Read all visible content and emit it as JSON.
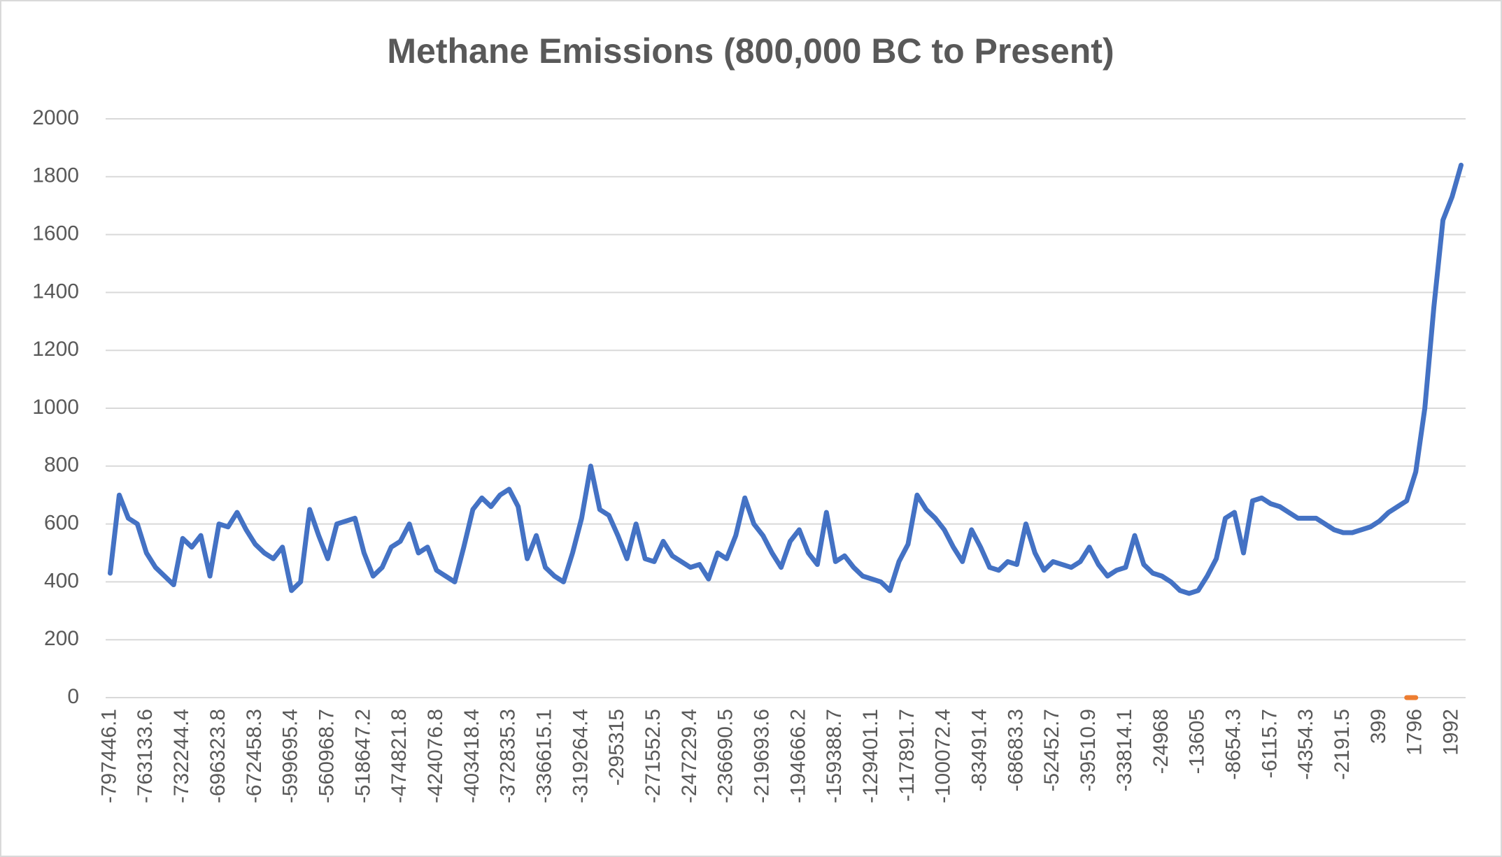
{
  "chart_data": {
    "type": "line",
    "title": "Methane Emissions (800,000 BC to Present)",
    "categories": [
      "-797446.1",
      null,
      null,
      null,
      "-763133.6",
      null,
      null,
      null,
      "-732244.4",
      null,
      null,
      null,
      "-696323.8",
      null,
      null,
      null,
      "-672458.3",
      null,
      null,
      null,
      "-599695.4",
      null,
      null,
      null,
      "-560968.7",
      null,
      null,
      null,
      "-518647.2",
      null,
      null,
      null,
      "-474821.8",
      null,
      null,
      null,
      "-424076.8",
      null,
      null,
      null,
      "-403418.4",
      null,
      null,
      null,
      "-372835.3",
      null,
      null,
      null,
      "-336615.1",
      null,
      null,
      null,
      "-319264.4",
      null,
      null,
      null,
      "-295315",
      null,
      null,
      null,
      "-271552.5",
      null,
      null,
      null,
      "-247229.4",
      null,
      null,
      null,
      "-236690.5",
      null,
      null,
      null,
      "-219693.6",
      null,
      null,
      null,
      "-194666.2",
      null,
      null,
      null,
      "-159388.7",
      null,
      null,
      null,
      "-129401.1",
      null,
      null,
      null,
      "-117891.7",
      null,
      null,
      null,
      "-100072.4",
      null,
      null,
      null,
      "-83491.4",
      null,
      null,
      null,
      "-68683.3",
      null,
      null,
      null,
      "-52452.7",
      null,
      null,
      null,
      "-39510.9",
      null,
      null,
      null,
      "-33814.1",
      null,
      null,
      null,
      "-24968",
      null,
      null,
      null,
      "-13605",
      null,
      null,
      null,
      "-8654.3",
      null,
      null,
      null,
      "-6115.7",
      null,
      null,
      null,
      "-4354.3",
      null,
      null,
      null,
      "-2191.5",
      null,
      null,
      null,
      "399",
      null,
      null,
      null,
      "1796",
      null,
      null,
      null,
      "1992",
      null
    ],
    "series": [
      {
        "color": "#4472c4",
        "values": [
          430,
          700,
          620,
          600,
          500,
          450,
          420,
          390,
          550,
          520,
          560,
          420,
          600,
          590,
          640,
          580,
          530,
          500,
          480,
          520,
          370,
          400,
          650,
          560,
          480,
          600,
          610,
          620,
          500,
          420,
          450,
          520,
          540,
          600,
          500,
          520,
          440,
          420,
          400,
          520,
          650,
          690,
          660,
          700,
          720,
          660,
          480,
          560,
          450,
          420,
          400,
          500,
          620,
          800,
          650,
          630,
          560,
          480,
          600,
          480,
          470,
          540,
          490,
          470,
          450,
          460,
          410,
          500,
          480,
          560,
          690,
          600,
          560,
          500,
          450,
          540,
          580,
          500,
          460,
          640,
          470,
          490,
          450,
          420,
          410,
          400,
          370,
          470,
          530,
          700,
          650,
          620,
          580,
          520,
          470,
          580,
          520,
          450,
          440,
          470,
          460,
          600,
          500,
          440,
          470,
          460,
          450,
          470,
          520,
          460,
          420,
          440,
          450,
          560,
          460,
          430,
          420,
          400,
          370,
          360,
          370,
          420,
          480,
          620,
          640,
          500,
          680,
          690,
          670,
          660,
          640,
          620,
          620,
          620,
          600,
          580,
          570,
          570,
          580,
          590,
          610,
          640,
          660,
          680,
          780,
          1000,
          1350,
          1650,
          1730,
          1840
        ]
      },
      {
        "color": "#ed7d31",
        "values": [
          null,
          null,
          null,
          null,
          null,
          null,
          null,
          null,
          null,
          null,
          null,
          null,
          null,
          null,
          null,
          null,
          null,
          null,
          null,
          null,
          null,
          null,
          null,
          null,
          null,
          null,
          null,
          null,
          null,
          null,
          null,
          null,
          null,
          null,
          null,
          null,
          null,
          null,
          null,
          null,
          null,
          null,
          null,
          null,
          null,
          null,
          null,
          null,
          null,
          null,
          null,
          null,
          null,
          null,
          null,
          null,
          null,
          null,
          null,
          null,
          null,
          null,
          null,
          null,
          null,
          null,
          null,
          null,
          null,
          null,
          null,
          null,
          null,
          null,
          null,
          null,
          null,
          null,
          null,
          null,
          null,
          null,
          null,
          null,
          null,
          null,
          null,
          null,
          null,
          null,
          null,
          null,
          null,
          null,
          null,
          null,
          null,
          null,
          null,
          null,
          null,
          null,
          null,
          null,
          null,
          null,
          null,
          null,
          null,
          null,
          null,
          null,
          null,
          null,
          null,
          null,
          null,
          null,
          null,
          null,
          null,
          null,
          null,
          null,
          null,
          null,
          null,
          null,
          null,
          null,
          null,
          null,
          null,
          null,
          null,
          null,
          null,
          null,
          null,
          null,
          null,
          null,
          null,
          0,
          0,
          null,
          null,
          null,
          null,
          null
        ]
      }
    ],
    "ylim": [
      0,
      2000
    ],
    "yticks": [
      0,
      200,
      400,
      600,
      800,
      1000,
      1200,
      1400,
      1600,
      1800,
      2000
    ],
    "grid": true
  }
}
